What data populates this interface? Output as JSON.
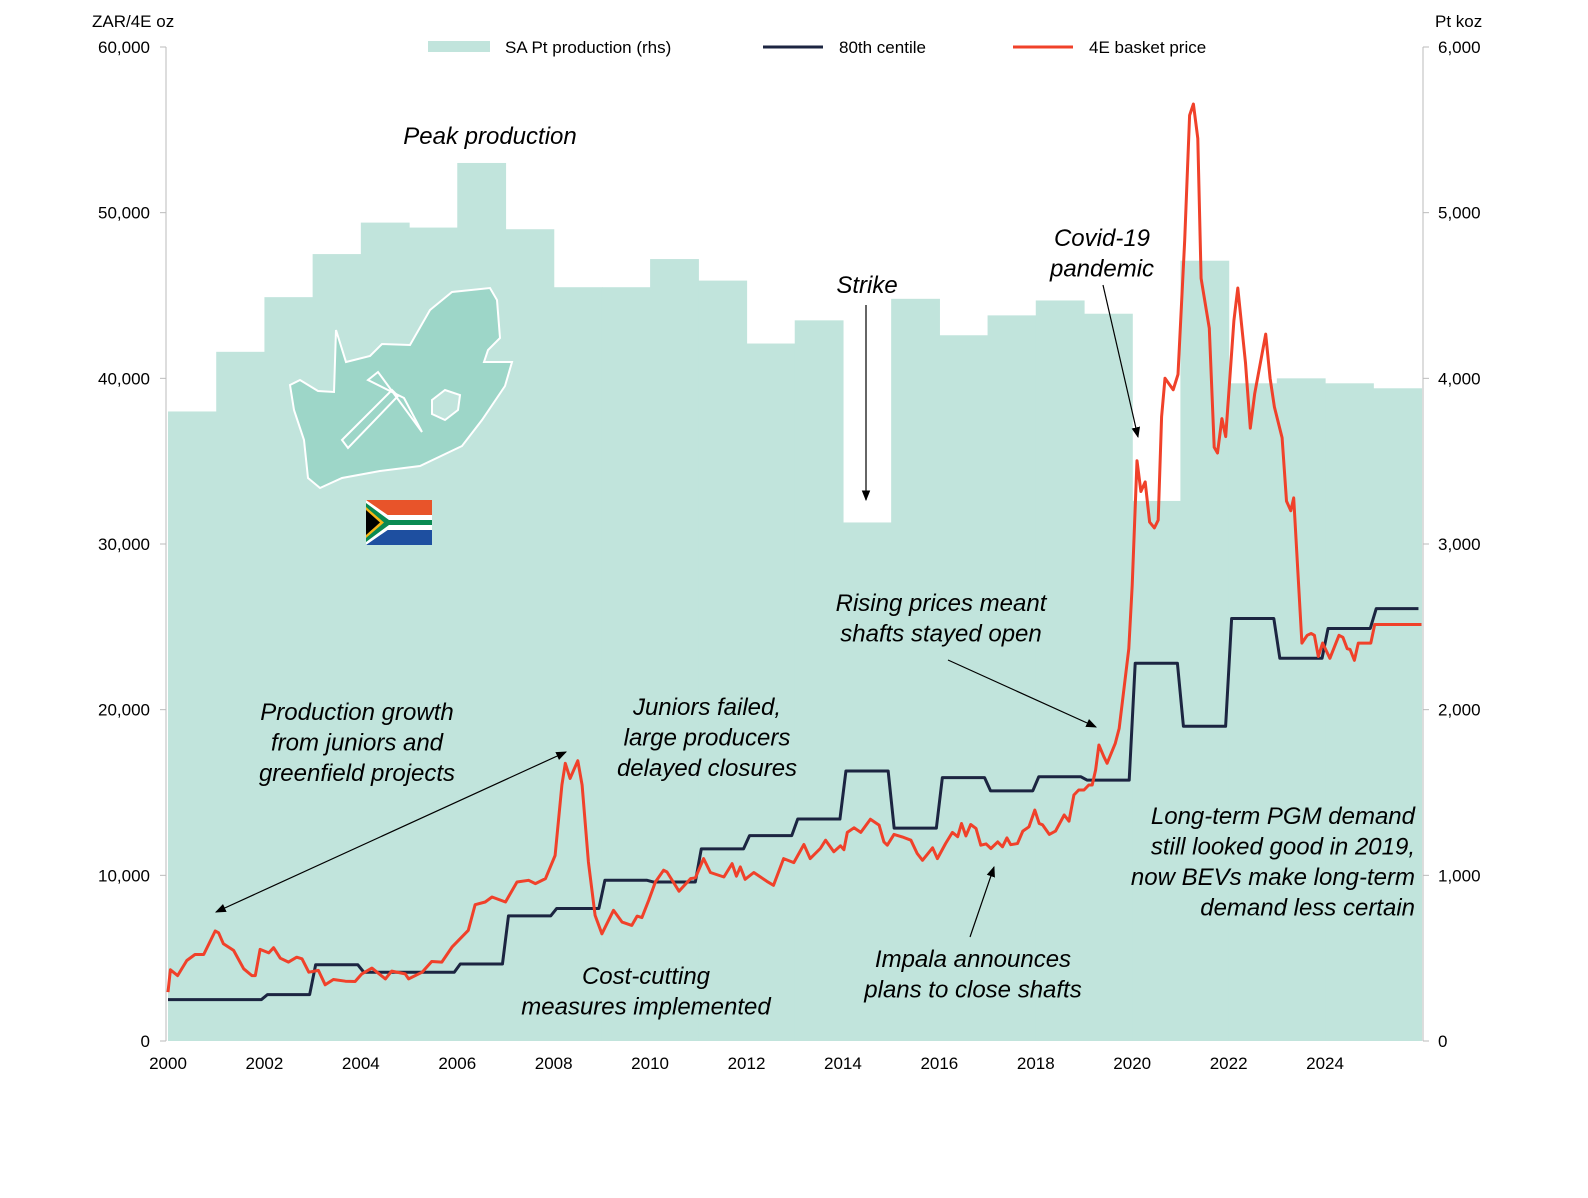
{
  "chart_data": {
    "type": "bar+line",
    "title": "",
    "ylabel_left": "ZAR/4E oz",
    "ylabel_right": "Pt koz",
    "ylim_left": [
      0,
      60000
    ],
    "ylim_right": [
      0,
      6000
    ],
    "xlim": [
      2000,
      2026
    ],
    "yticks_left": [
      "0",
      "10,000",
      "20,000",
      "30,000",
      "40,000",
      "50,000",
      "60,000"
    ],
    "yticks_right": [
      "0",
      "1,000",
      "2,000",
      "3,000",
      "4,000",
      "5,000",
      "6,000"
    ],
    "xticks": [
      "2000",
      "2002",
      "2004",
      "2006",
      "2008",
      "2010",
      "2012",
      "2014",
      "2016",
      "2018",
      "2020",
      "2022",
      "2024"
    ],
    "legend": {
      "placement": "top",
      "production": "SA Pt production (rhs)",
      "centile": "80th centile",
      "price": "4E basket price"
    },
    "colors": {
      "production": "#c1e4dc",
      "centile": "#1c2541",
      "price": "#f0412a",
      "map": "#9dd6c8"
    },
    "production": {
      "name": "SA Pt production (rhs)",
      "years": [
        2000,
        2001,
        2002,
        2003,
        2004,
        2005,
        2006,
        2007,
        2008,
        2009,
        2010,
        2011,
        2012,
        2013,
        2014,
        2015,
        2016,
        2017,
        2018,
        2019,
        2020,
        2021,
        2022,
        2023,
        2024,
        2025
      ],
      "values": [
        3800,
        4160,
        4490,
        4750,
        4940,
        4910,
        5300,
        4900,
        4550,
        4550,
        4720,
        4590,
        4210,
        4350,
        3130,
        4480,
        4260,
        4380,
        4470,
        4390,
        3260,
        4710,
        3970,
        4000,
        3970,
        3940
      ]
    },
    "centile": {
      "name": "80th centile",
      "years": [
        2000,
        2001,
        2002,
        2003,
        2004,
        2005,
        2006,
        2007,
        2008,
        2009,
        2010,
        2011,
        2012,
        2013,
        2014,
        2015,
        2016,
        2017,
        2018,
        2019,
        2020,
        2021,
        2022,
        2023,
        2024,
        2025
      ],
      "values": [
        2500,
        2500,
        2800,
        4600,
        4150,
        4150,
        4650,
        7550,
        8000,
        9700,
        9600,
        11600,
        12400,
        13400,
        16300,
        12850,
        15900,
        15100,
        15950,
        15750,
        22800,
        19000,
        25500,
        23100,
        24900,
        26100
      ]
    },
    "price": {
      "name": "4E basket price",
      "points": [
        [
          2000.0,
          2950
        ],
        [
          2000.05,
          4300
        ],
        [
          2000.2,
          3950
        ],
        [
          2000.39,
          4860
        ],
        [
          2000.56,
          5220
        ],
        [
          2000.74,
          5220
        ],
        [
          2000.98,
          6640
        ],
        [
          2001.05,
          6530
        ],
        [
          2001.15,
          5870
        ],
        [
          2001.36,
          5470
        ],
        [
          2001.57,
          4360
        ],
        [
          2001.74,
          3950
        ],
        [
          2001.81,
          3950
        ],
        [
          2001.91,
          5530
        ],
        [
          2002.09,
          5320
        ],
        [
          2002.19,
          5630
        ],
        [
          2002.33,
          5000
        ],
        [
          2002.5,
          4760
        ],
        [
          2002.67,
          5060
        ],
        [
          2002.78,
          4960
        ],
        [
          2002.92,
          4150
        ],
        [
          2003.12,
          4260
        ],
        [
          2003.26,
          3390
        ],
        [
          2003.43,
          3710
        ],
        [
          2003.68,
          3610
        ],
        [
          2003.88,
          3590
        ],
        [
          2004.02,
          4050
        ],
        [
          2004.23,
          4400
        ],
        [
          2004.51,
          3750
        ],
        [
          2004.64,
          4220
        ],
        [
          2004.92,
          4050
        ],
        [
          2004.99,
          3750
        ],
        [
          2005.27,
          4150
        ],
        [
          2005.47,
          4800
        ],
        [
          2005.68,
          4760
        ],
        [
          2005.89,
          5670
        ],
        [
          2006.23,
          6680
        ],
        [
          2006.37,
          8230
        ],
        [
          2006.58,
          8390
        ],
        [
          2006.72,
          8690
        ],
        [
          2007.0,
          8390
        ],
        [
          2007.24,
          9600
        ],
        [
          2007.48,
          9700
        ],
        [
          2007.62,
          9500
        ],
        [
          2007.83,
          9800
        ],
        [
          2008.03,
          11200
        ],
        [
          2008.17,
          15450
        ],
        [
          2008.24,
          16760
        ],
        [
          2008.34,
          15850
        ],
        [
          2008.5,
          16920
        ],
        [
          2008.59,
          15450
        ],
        [
          2008.72,
          10810
        ],
        [
          2008.86,
          7580
        ],
        [
          2009.0,
          6470
        ],
        [
          2009.24,
          7890
        ],
        [
          2009.42,
          7180
        ],
        [
          2009.62,
          6980
        ],
        [
          2009.73,
          7540
        ],
        [
          2009.83,
          7450
        ],
        [
          2009.97,
          8490
        ],
        [
          2010.11,
          9600
        ],
        [
          2010.28,
          10310
        ],
        [
          2010.35,
          10200
        ],
        [
          2010.6,
          9040
        ],
        [
          2010.84,
          9800
        ],
        [
          2010.94,
          9850
        ],
        [
          2011.11,
          11010
        ],
        [
          2011.25,
          10170
        ],
        [
          2011.53,
          9900
        ],
        [
          2011.7,
          10710
        ],
        [
          2011.79,
          9950
        ],
        [
          2011.87,
          10510
        ],
        [
          2011.97,
          9760
        ],
        [
          2012.15,
          10170
        ],
        [
          2012.42,
          9640
        ],
        [
          2012.56,
          9400
        ],
        [
          2012.77,
          11010
        ],
        [
          2012.98,
          10770
        ],
        [
          2013.19,
          11860
        ],
        [
          2013.32,
          11010
        ],
        [
          2013.53,
          11620
        ],
        [
          2013.64,
          12120
        ],
        [
          2013.81,
          11420
        ],
        [
          2013.95,
          11780
        ],
        [
          2014.02,
          11550
        ],
        [
          2014.09,
          12590
        ],
        [
          2014.23,
          12870
        ],
        [
          2014.37,
          12590
        ],
        [
          2014.57,
          13390
        ],
        [
          2014.75,
          13030
        ],
        [
          2014.85,
          12020
        ],
        [
          2014.92,
          11820
        ],
        [
          2015.06,
          12470
        ],
        [
          2015.23,
          12320
        ],
        [
          2015.41,
          12120
        ],
        [
          2015.54,
          11320
        ],
        [
          2015.65,
          10910
        ],
        [
          2015.86,
          11660
        ],
        [
          2015.96,
          11010
        ],
        [
          2016.13,
          11920
        ],
        [
          2016.27,
          12590
        ],
        [
          2016.38,
          12330
        ],
        [
          2016.46,
          13130
        ],
        [
          2016.55,
          12380
        ],
        [
          2016.65,
          13070
        ],
        [
          2016.76,
          12830
        ],
        [
          2016.86,
          11820
        ],
        [
          2016.97,
          11900
        ],
        [
          2017.07,
          11620
        ],
        [
          2017.21,
          12020
        ],
        [
          2017.31,
          11720
        ],
        [
          2017.4,
          12260
        ],
        [
          2017.48,
          11850
        ],
        [
          2017.62,
          11920
        ],
        [
          2017.73,
          12670
        ],
        [
          2017.86,
          12930
        ],
        [
          2017.98,
          13940
        ],
        [
          2018.07,
          13130
        ],
        [
          2018.14,
          13050
        ],
        [
          2018.28,
          12470
        ],
        [
          2018.41,
          12670
        ],
        [
          2018.59,
          13640
        ],
        [
          2018.69,
          13270
        ],
        [
          2018.79,
          14850
        ],
        [
          2018.89,
          15150
        ],
        [
          2019.0,
          15150
        ],
        [
          2019.1,
          15450
        ],
        [
          2019.17,
          15450
        ],
        [
          2019.24,
          16360
        ],
        [
          2019.31,
          17870
        ],
        [
          2019.41,
          17170
        ],
        [
          2019.48,
          16760
        ],
        [
          2019.65,
          17970
        ],
        [
          2019.73,
          18880
        ],
        [
          2019.93,
          23680
        ],
        [
          2020.0,
          27500
        ],
        [
          2020.1,
          35030
        ],
        [
          2020.18,
          33170
        ],
        [
          2020.27,
          33750
        ],
        [
          2020.36,
          31320
        ],
        [
          2020.46,
          30970
        ],
        [
          2020.54,
          31440
        ],
        [
          2020.61,
          37690
        ],
        [
          2020.68,
          40000
        ],
        [
          2020.85,
          39310
        ],
        [
          2020.95,
          40240
        ],
        [
          2021.09,
          48340
        ],
        [
          2021.19,
          55870
        ],
        [
          2021.27,
          56560
        ],
        [
          2021.36,
          54480
        ],
        [
          2021.43,
          46030
        ],
        [
          2021.6,
          43020
        ],
        [
          2021.7,
          35840
        ],
        [
          2021.77,
          35490
        ],
        [
          2021.86,
          37570
        ],
        [
          2021.94,
          36480
        ],
        [
          2022.11,
          43480
        ],
        [
          2022.19,
          45450
        ],
        [
          2022.35,
          40930
        ],
        [
          2022.45,
          36990
        ],
        [
          2022.54,
          39080
        ],
        [
          2022.77,
          42670
        ],
        [
          2022.86,
          40000
        ],
        [
          2022.95,
          38270
        ],
        [
          2023.11,
          36410
        ],
        [
          2023.2,
          32590
        ],
        [
          2023.29,
          32010
        ],
        [
          2023.35,
          32780
        ],
        [
          2023.52,
          24020
        ],
        [
          2023.63,
          24490
        ],
        [
          2023.71,
          24600
        ],
        [
          2023.78,
          24490
        ],
        [
          2023.86,
          23210
        ],
        [
          2023.95,
          24020
        ],
        [
          2024.1,
          23100
        ],
        [
          2024.29,
          24490
        ],
        [
          2024.37,
          24370
        ],
        [
          2024.46,
          23680
        ],
        [
          2024.52,
          23630
        ],
        [
          2024.61,
          22980
        ],
        [
          2024.69,
          24020
        ],
        [
          2024.95,
          24020
        ],
        [
          2025.03,
          25140
        ],
        [
          2026.0,
          25140
        ]
      ]
    },
    "annotations": {
      "peak": [
        "Peak production"
      ],
      "strike": [
        "Strike"
      ],
      "covid": [
        "Covid-19",
        "pandemic"
      ],
      "rising": [
        "Rising prices meant",
        "shafts stayed open"
      ],
      "growth": [
        "Production growth",
        "from juniors and",
        "greenfield projects"
      ],
      "juniors": [
        "Juniors failed,",
        "large producers",
        "delayed closures"
      ],
      "longterm": [
        "Long-term PGM demand",
        "still looked good in 2019,",
        "now BEVs make long-term",
        "demand less certain"
      ],
      "impala": [
        "Impala announces",
        "plans to close shafts"
      ],
      "costcut": [
        "Cost-cutting",
        "measures implemented"
      ]
    }
  }
}
